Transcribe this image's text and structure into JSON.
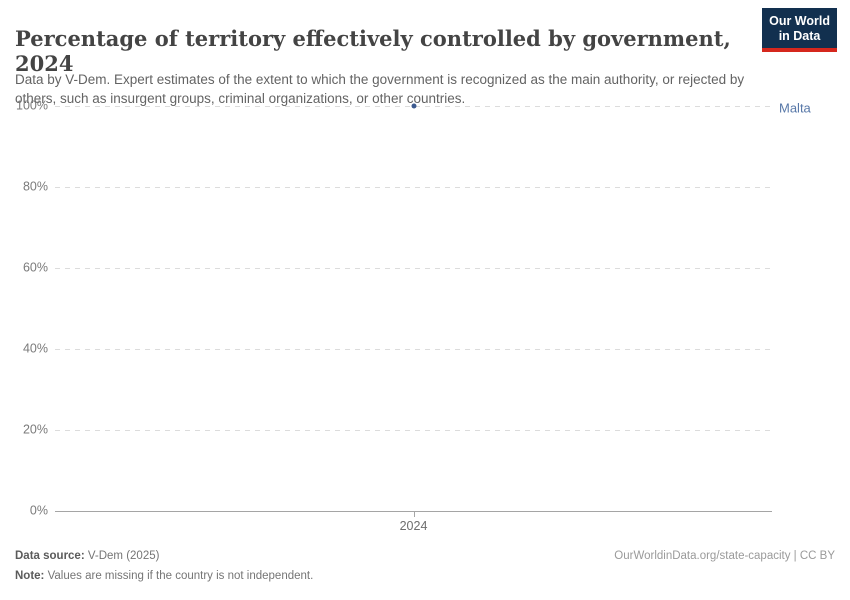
{
  "header": {
    "title": "Percentage of territory effectively controlled by government, 2024",
    "subtitle": "Data by V-Dem. Expert estimates of the extent to which the government is recognized as the main authority, or rejected by others, such as insurgent groups, criminal organizations, or other countries.",
    "logo": {
      "line1": "Our World",
      "line2": "in Data"
    }
  },
  "chart_data": {
    "type": "scatter",
    "title": "Percentage of territory effectively controlled by government, 2024",
    "series": [
      {
        "name": "Malta",
        "points": [
          {
            "x": 2024,
            "y": 100
          }
        ],
        "color": "#3d5a8f",
        "label_color": "#5878a8"
      }
    ],
    "x_ticks": [
      "2024"
    ],
    "y_ticks": [
      0,
      20,
      40,
      60,
      80,
      100
    ],
    "y_tick_suffix": "%",
    "ylim": [
      0,
      100
    ],
    "xlabel": "",
    "ylabel": "",
    "grid": "horizontal-dashed",
    "legend_position": "entity-label-right"
  },
  "footer": {
    "datasource_label": "Data source:",
    "datasource_value": " V-Dem (2025)",
    "note_label": "Note:",
    "note_value": " Values are missing if the country is not independent.",
    "link": "OurWorldinData.org/state-capacity | CC BY"
  },
  "colors": {
    "logo_navy": "#12304f",
    "logo_red": "#d5271d",
    "point_blue": "#3d5a8f",
    "entity_label_blue": "#5878a8",
    "gridline": "#dcdcdc",
    "axis_line": "#a5a5a5",
    "title_text": "#444444",
    "subtitle_text": "#636363",
    "tick_text": "#7a7a7a"
  }
}
